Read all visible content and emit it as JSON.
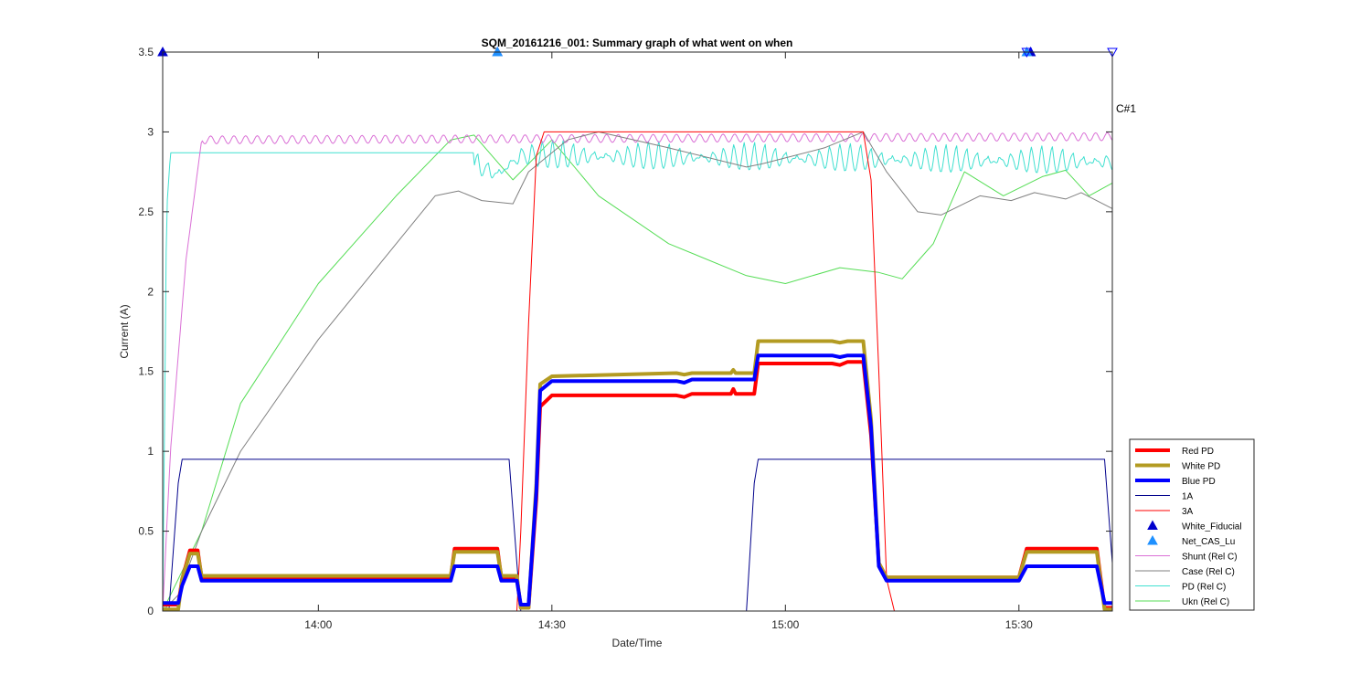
{
  "chart_data": {
    "type": "line",
    "title": "SQM_20161216_001: Summary graph of what went on when",
    "xlabel": "Date/Time",
    "ylabel": "Current (A)",
    "xlim": [
      "13:40",
      "15:42"
    ],
    "ylim": [
      0,
      3.5
    ],
    "x_ticks": [
      "14:00",
      "14:30",
      "15:00",
      "15:30"
    ],
    "y_ticks": [
      "0",
      "0.5",
      "1",
      "1.5",
      "2",
      "2.5",
      "3",
      "3.5"
    ],
    "grid": false,
    "legend_position": "bottom-right",
    "annotation": "C#1",
    "series": [
      {
        "name": "Red PD",
        "color": "#ff0000",
        "width": 4,
        "style": "line",
        "points": [
          [
            "13:40",
            0.04
          ],
          [
            "13:42",
            0.04
          ],
          [
            "13:42.5",
            0.2
          ],
          [
            "13:43.5",
            0.38
          ],
          [
            "13:44.5",
            0.38
          ],
          [
            "13:45",
            0.21
          ],
          [
            "14:17",
            0.21
          ],
          [
            "14:17.5",
            0.39
          ],
          [
            "14:23",
            0.39
          ],
          [
            "14:23.5",
            0.21
          ],
          [
            "14:25.5",
            0.21
          ],
          [
            "14:26",
            0.02
          ],
          [
            "14:27",
            0.02
          ],
          [
            "14:28",
            0.7
          ],
          [
            "14:28.5",
            1.28
          ],
          [
            "14:30",
            1.35
          ],
          [
            "14:46",
            1.35
          ],
          [
            "14:47",
            1.34
          ],
          [
            "14:48",
            1.36
          ],
          [
            "14:53",
            1.36
          ],
          [
            "14:53.3",
            1.39
          ],
          [
            "14:53.6",
            1.36
          ],
          [
            "14:56",
            1.36
          ],
          [
            "14:56.5",
            1.55
          ],
          [
            "15:06",
            1.55
          ],
          [
            "15:07",
            1.54
          ],
          [
            "15:08",
            1.56
          ],
          [
            "15:10",
            1.56
          ],
          [
            "15:11",
            1.1
          ],
          [
            "15:12",
            0.3
          ],
          [
            "15:13",
            0.21
          ],
          [
            "15:30",
            0.21
          ],
          [
            "15:31",
            0.39
          ],
          [
            "15:40",
            0.39
          ],
          [
            "15:41",
            0.02
          ],
          [
            "15:42",
            0.02
          ]
        ]
      },
      {
        "name": "White PD",
        "color": "#b39b22",
        "width": 4,
        "style": "line",
        "points": [
          [
            "13:40",
            0.01
          ],
          [
            "13:42",
            0.01
          ],
          [
            "13:42.5",
            0.2
          ],
          [
            "13:43.5",
            0.36
          ],
          [
            "13:44.5",
            0.36
          ],
          [
            "13:45",
            0.22
          ],
          [
            "14:17",
            0.22
          ],
          [
            "14:17.5",
            0.37
          ],
          [
            "14:23",
            0.37
          ],
          [
            "14:23.5",
            0.22
          ],
          [
            "14:25.5",
            0.22
          ],
          [
            "14:26",
            0.02
          ],
          [
            "14:27",
            0.02
          ],
          [
            "14:28",
            0.8
          ],
          [
            "14:28.5",
            1.42
          ],
          [
            "14:30",
            1.47
          ],
          [
            "14:46",
            1.49
          ],
          [
            "14:47",
            1.48
          ],
          [
            "14:48",
            1.49
          ],
          [
            "14:53",
            1.49
          ],
          [
            "14:53.3",
            1.51
          ],
          [
            "14:53.6",
            1.49
          ],
          [
            "14:56",
            1.49
          ],
          [
            "14:56.5",
            1.69
          ],
          [
            "15:06",
            1.69
          ],
          [
            "15:07",
            1.68
          ],
          [
            "15:08",
            1.69
          ],
          [
            "15:10",
            1.69
          ],
          [
            "15:11",
            1.2
          ],
          [
            "15:12",
            0.3
          ],
          [
            "15:13",
            0.21
          ],
          [
            "15:30",
            0.21
          ],
          [
            "15:31",
            0.37
          ],
          [
            "15:40",
            0.37
          ],
          [
            "15:41",
            0.01
          ],
          [
            "15:42",
            0.01
          ]
        ]
      },
      {
        "name": "Blue PD",
        "color": "#0000ff",
        "width": 4,
        "style": "line",
        "points": [
          [
            "13:40",
            0.05
          ],
          [
            "13:42",
            0.05
          ],
          [
            "13:42.5",
            0.16
          ],
          [
            "13:43.5",
            0.28
          ],
          [
            "13:44.5",
            0.28
          ],
          [
            "13:45",
            0.19
          ],
          [
            "14:17",
            0.19
          ],
          [
            "14:17.5",
            0.28
          ],
          [
            "14:23",
            0.28
          ],
          [
            "14:23.5",
            0.19
          ],
          [
            "14:25.5",
            0.19
          ],
          [
            "14:26",
            0.04
          ],
          [
            "14:27",
            0.04
          ],
          [
            "14:28",
            0.75
          ],
          [
            "14:28.5",
            1.38
          ],
          [
            "14:30",
            1.44
          ],
          [
            "14:46",
            1.44
          ],
          [
            "14:47",
            1.43
          ],
          [
            "14:48",
            1.45
          ],
          [
            "14:53",
            1.45
          ],
          [
            "14:56",
            1.45
          ],
          [
            "14:56.5",
            1.6
          ],
          [
            "15:06",
            1.6
          ],
          [
            "15:07",
            1.59
          ],
          [
            "15:08",
            1.6
          ],
          [
            "15:10",
            1.6
          ],
          [
            "15:11",
            1.15
          ],
          [
            "15:12",
            0.28
          ],
          [
            "15:13",
            0.19
          ],
          [
            "15:30",
            0.19
          ],
          [
            "15:31",
            0.28
          ],
          [
            "15:40",
            0.28
          ],
          [
            "15:41",
            0.05
          ],
          [
            "15:42",
            0.05
          ]
        ]
      },
      {
        "name": "1A",
        "color": "#00008b",
        "width": 1,
        "style": "line",
        "points": [
          [
            "13:40",
            0.0
          ],
          [
            "13:40.8",
            0.0
          ],
          [
            "13:42",
            0.8
          ],
          [
            "13:42.5",
            0.95
          ],
          [
            "14:24.5",
            0.95
          ],
          [
            "14:25.5",
            0.3
          ],
          [
            "14:26",
            0.0
          ],
          [
            "14:55",
            0.0
          ],
          [
            "14:56",
            0.8
          ],
          [
            "14:56.5",
            0.95
          ],
          [
            "15:41",
            0.95
          ],
          [
            "15:42",
            0.3
          ]
        ]
      },
      {
        "name": "3A",
        "color": "#ff0000",
        "width": 1,
        "style": "line",
        "points": [
          [
            "13:40",
            0.0
          ],
          [
            "14:25.5",
            0.0
          ],
          [
            "14:26",
            0.5
          ],
          [
            "14:27",
            1.8
          ],
          [
            "14:28",
            2.85
          ],
          [
            "14:29",
            3.0
          ],
          [
            "15:10",
            3.0
          ],
          [
            "15:11",
            2.7
          ],
          [
            "15:12",
            1.5
          ],
          [
            "15:13",
            0.2
          ],
          [
            "15:14",
            0.0
          ],
          [
            "15:42",
            0.0
          ]
        ]
      },
      {
        "name": "White_Fiducial",
        "color": "#0000cd",
        "width": 0,
        "style": "marker-up",
        "points": [
          [
            "13:40",
            3.5
          ],
          [
            "14:23",
            3.5
          ],
          [
            "15:31.5",
            3.5
          ]
        ]
      },
      {
        "name": "Net_CAS_Lu",
        "color": "#1e90ff",
        "width": 0,
        "style": "marker-up",
        "points": [
          [
            "14:23",
            3.5
          ],
          [
            "15:31",
            3.5
          ]
        ]
      },
      {
        "name": "Shunt (Rel C)",
        "color": "#da70d6",
        "width": 1,
        "style": "line-ripple",
        "ripple": 0.025,
        "points": [
          [
            "13:40",
            0.0
          ],
          [
            "13:41",
            1.0
          ],
          [
            "13:43",
            2.2
          ],
          [
            "13:45",
            2.95
          ],
          [
            "15:42",
            2.97
          ]
        ]
      },
      {
        "name": "Case (Rel C)",
        "color": "#808080",
        "width": 1,
        "style": "line",
        "points": [
          [
            "13:40",
            0.0
          ],
          [
            "13:42",
            0.1
          ],
          [
            "13:45",
            0.5
          ],
          [
            "13:50",
            1.0
          ],
          [
            "14:00",
            1.7
          ],
          [
            "14:10",
            2.3
          ],
          [
            "14:15",
            2.6
          ],
          [
            "14:18",
            2.63
          ],
          [
            "14:21",
            2.57
          ],
          [
            "14:25",
            2.55
          ],
          [
            "14:27",
            2.75
          ],
          [
            "14:32",
            2.95
          ],
          [
            "14:36",
            3.0
          ],
          [
            "14:45",
            2.9
          ],
          [
            "14:55",
            2.78
          ],
          [
            "14:57",
            2.8
          ],
          [
            "15:05",
            2.9
          ],
          [
            "15:10",
            3.0
          ],
          [
            "15:13",
            2.75
          ],
          [
            "15:17",
            2.5
          ],
          [
            "15:20",
            2.48
          ],
          [
            "15:25",
            2.6
          ],
          [
            "15:29",
            2.57
          ],
          [
            "15:32",
            2.62
          ],
          [
            "15:36",
            2.58
          ],
          [
            "15:38",
            2.62
          ],
          [
            "15:42",
            2.52
          ]
        ]
      },
      {
        "name": "PD (Rel C)",
        "color": "#40e0d0",
        "width": 1,
        "style": "line-ripple",
        "ripple": 0.09,
        "points": [
          [
            "13:40",
            0.0
          ],
          [
            "13:40.5",
            2.5
          ],
          [
            "13:41",
            2.87
          ],
          [
            "14:20",
            2.87
          ],
          [
            "14:23",
            2.8
          ],
          [
            "14:26",
            2.92
          ],
          [
            "15:42",
            2.88
          ]
        ]
      },
      {
        "name": "Ukn (Rel C)",
        "color": "#55dd55",
        "width": 1,
        "style": "line",
        "points": [
          [
            "13:40",
            0.0
          ],
          [
            "13:45",
            0.5
          ],
          [
            "13:50",
            1.3
          ],
          [
            "14:00",
            2.05
          ],
          [
            "14:10",
            2.6
          ],
          [
            "14:17",
            2.95
          ],
          [
            "14:20",
            2.98
          ],
          [
            "14:25",
            2.7
          ],
          [
            "14:30",
            2.95
          ],
          [
            "14:36",
            2.6
          ],
          [
            "14:45",
            2.3
          ],
          [
            "14:55",
            2.1
          ],
          [
            "15:00",
            2.05
          ],
          [
            "15:07",
            2.15
          ],
          [
            "15:12",
            2.12
          ],
          [
            "15:15",
            2.08
          ],
          [
            "15:19",
            2.3
          ],
          [
            "15:23",
            2.75
          ],
          [
            "15:28",
            2.6
          ],
          [
            "15:33",
            2.72
          ],
          [
            "15:36",
            2.76
          ],
          [
            "15:39",
            2.6
          ],
          [
            "15:42",
            2.68
          ]
        ]
      }
    ],
    "extra_markers": [
      {
        "color": "#0000ff",
        "style": "marker-down",
        "points": [
          [
            "15:31",
            3.5
          ],
          [
            "15:42",
            3.5
          ]
        ]
      }
    ]
  }
}
